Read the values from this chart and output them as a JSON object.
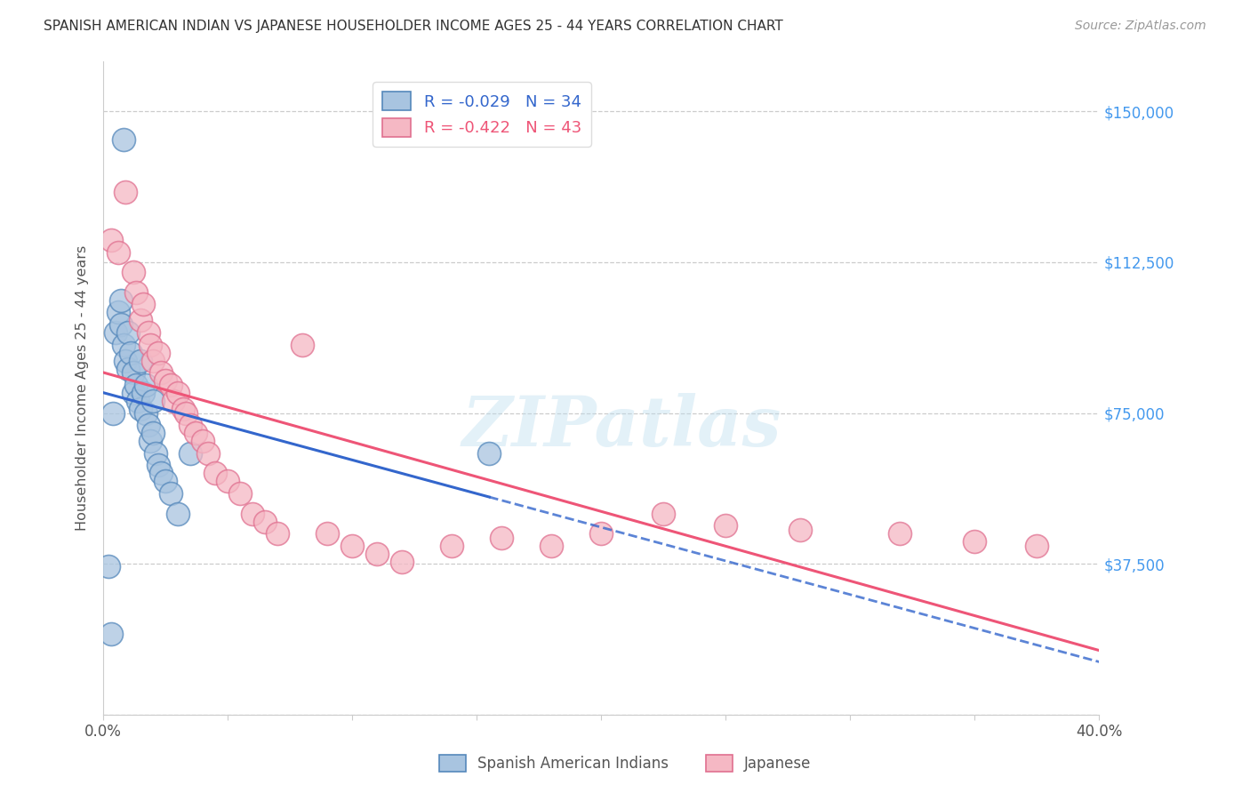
{
  "title": "SPANISH AMERICAN INDIAN VS JAPANESE HOUSEHOLDER INCOME AGES 25 - 44 YEARS CORRELATION CHART",
  "source": "Source: ZipAtlas.com",
  "ylabel": "Householder Income Ages 25 - 44 years",
  "xlim": [
    0.0,
    0.4
  ],
  "ylim": [
    0,
    162500
  ],
  "yticks": [
    0,
    37500,
    75000,
    112500,
    150000
  ],
  "ytick_labels": [
    "",
    "$37,500",
    "$75,000",
    "$112,500",
    "$150,000"
  ],
  "xticks": [
    0.0,
    0.05,
    0.1,
    0.15,
    0.2,
    0.25,
    0.3,
    0.35,
    0.4
  ],
  "blue_R": "-0.029",
  "blue_N": "34",
  "pink_R": "-0.422",
  "pink_N": "43",
  "legend_label_blue": "Spanish American Indians",
  "legend_label_pink": "Japanese",
  "watermark": "ZIPatlas",
  "blue_color": "#a8c4e0",
  "pink_color": "#f5b8c4",
  "blue_edge_color": "#5588bb",
  "pink_edge_color": "#e07090",
  "blue_line_color": "#3366cc",
  "pink_line_color": "#ee5577",
  "title_color": "#333333",
  "axis_label_color": "#555555",
  "right_tick_color": "#4499ee",
  "grid_color": "#cccccc",
  "blue_scatter_x": [
    0.002,
    0.003,
    0.004,
    0.005,
    0.006,
    0.007,
    0.007,
    0.008,
    0.009,
    0.01,
    0.01,
    0.011,
    0.012,
    0.012,
    0.013,
    0.014,
    0.015,
    0.015,
    0.016,
    0.017,
    0.017,
    0.018,
    0.019,
    0.02,
    0.021,
    0.022,
    0.023,
    0.025,
    0.027,
    0.03,
    0.035,
    0.155,
    0.02,
    0.008
  ],
  "blue_scatter_y": [
    37000,
    20000,
    75000,
    95000,
    100000,
    103000,
    97000,
    92000,
    88000,
    86000,
    95000,
    90000,
    85000,
    80000,
    82000,
    78000,
    88000,
    76000,
    80000,
    82000,
    75000,
    72000,
    68000,
    70000,
    65000,
    62000,
    60000,
    58000,
    55000,
    50000,
    65000,
    65000,
    78000,
    143000
  ],
  "pink_scatter_x": [
    0.003,
    0.006,
    0.009,
    0.012,
    0.013,
    0.015,
    0.016,
    0.018,
    0.019,
    0.02,
    0.022,
    0.023,
    0.025,
    0.027,
    0.028,
    0.03,
    0.032,
    0.033,
    0.035,
    0.037,
    0.04,
    0.042,
    0.045,
    0.05,
    0.055,
    0.06,
    0.065,
    0.07,
    0.08,
    0.09,
    0.1,
    0.11,
    0.12,
    0.14,
    0.16,
    0.18,
    0.2,
    0.225,
    0.25,
    0.28,
    0.32,
    0.35,
    0.375
  ],
  "pink_scatter_y": [
    118000,
    115000,
    130000,
    110000,
    105000,
    98000,
    102000,
    95000,
    92000,
    88000,
    90000,
    85000,
    83000,
    82000,
    78000,
    80000,
    76000,
    75000,
    72000,
    70000,
    68000,
    65000,
    60000,
    58000,
    55000,
    50000,
    48000,
    45000,
    92000,
    45000,
    42000,
    40000,
    38000,
    42000,
    44000,
    42000,
    45000,
    50000,
    47000,
    46000,
    45000,
    43000,
    42000
  ]
}
